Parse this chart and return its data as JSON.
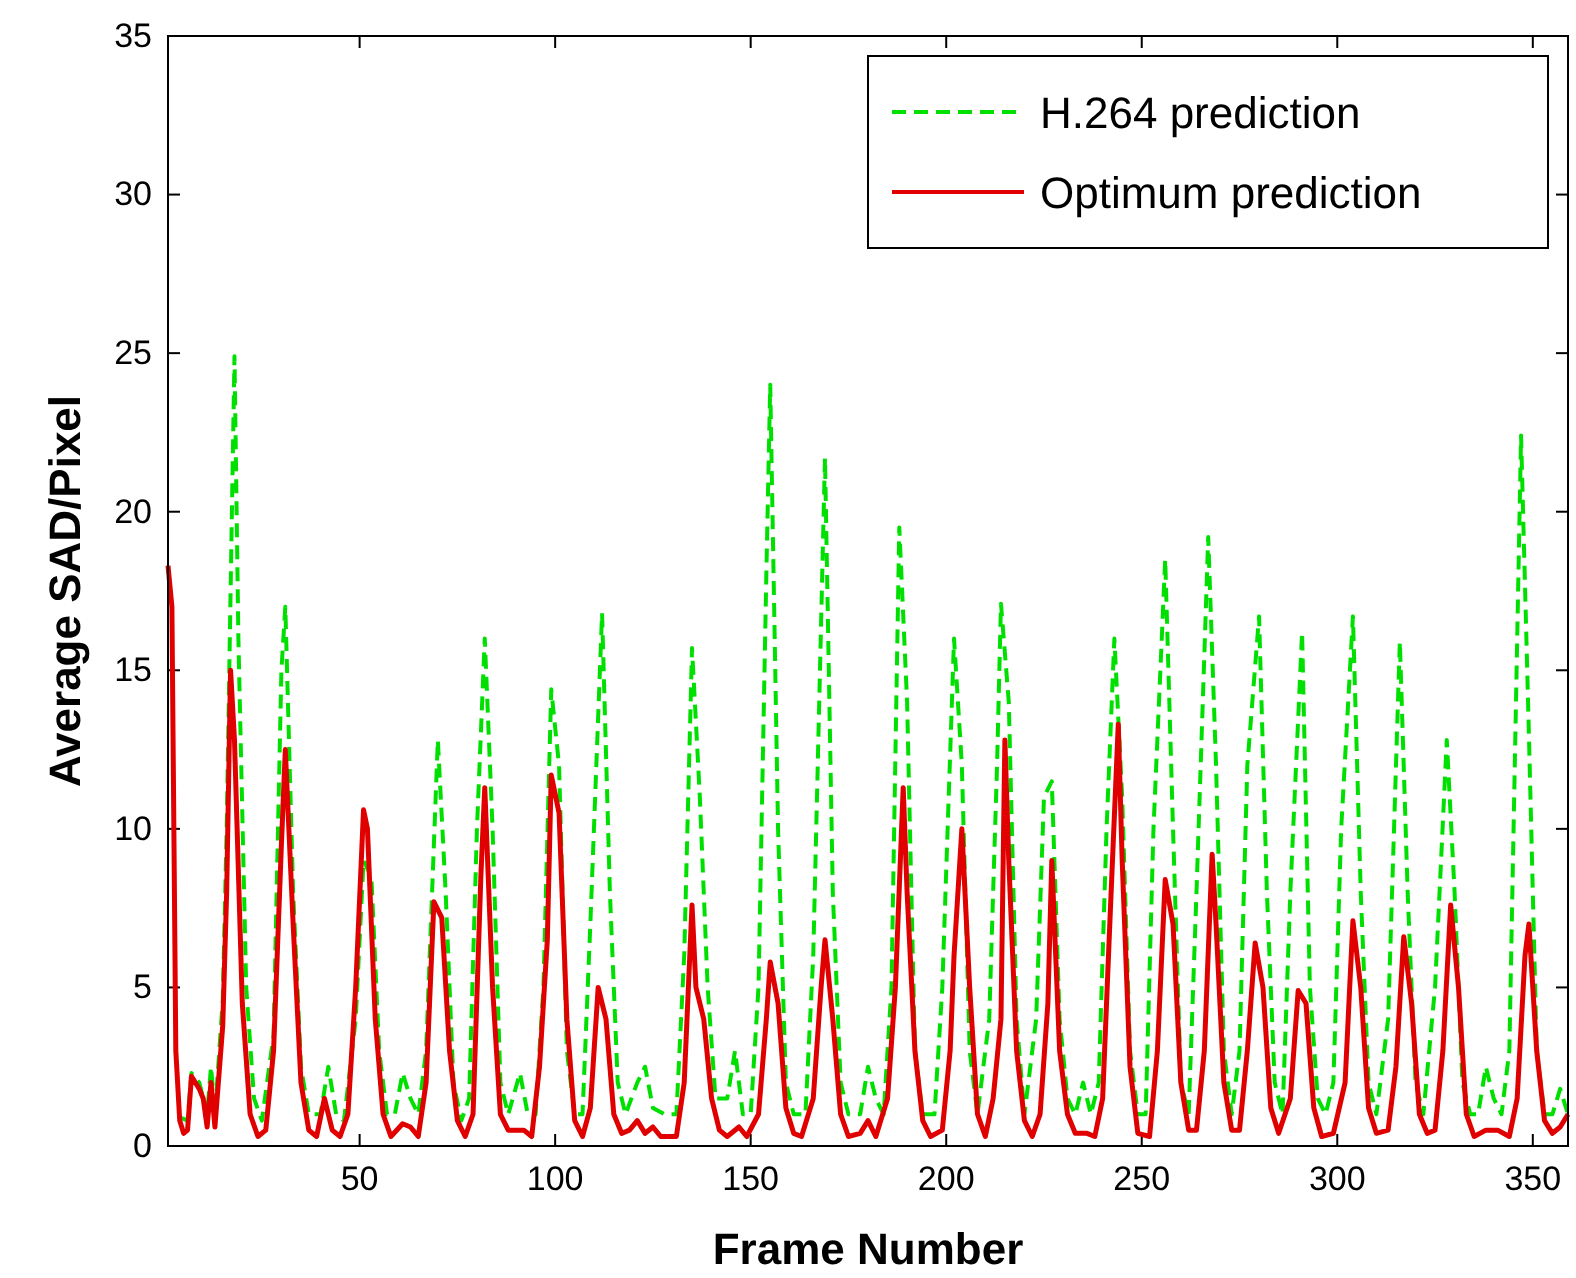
{
  "chart_data": {
    "type": "line",
    "xlabel": "Frame Number",
    "ylabel": "Average SAD/Pixel",
    "xlim": [
      1,
      359
    ],
    "ylim": [
      0,
      35
    ],
    "xticks": [
      50,
      100,
      150,
      200,
      250,
      300,
      350
    ],
    "yticks": [
      0,
      5,
      10,
      15,
      20,
      25,
      30,
      35
    ],
    "grid": false,
    "legend": "top right",
    "marker": "none",
    "series": [
      {
        "name": "H.264 prediction",
        "color": "#00e000",
        "line_style": "dashed",
        "x": [
          4,
          6,
          7,
          9,
          11,
          12,
          13,
          15,
          16,
          18,
          19,
          21,
          23,
          25,
          28,
          30,
          31,
          33,
          35,
          37,
          40,
          42,
          44,
          46,
          49,
          51,
          53,
          55,
          57,
          59,
          61,
          63,
          65,
          67,
          70,
          72,
          74,
          76,
          78,
          80,
          82,
          84,
          86,
          88,
          91,
          93,
          95,
          97,
          99,
          101,
          103,
          105,
          107,
          109,
          112,
          114,
          116,
          118,
          121,
          123,
          125,
          128,
          131,
          133,
          135,
          137,
          139,
          141,
          144,
          146,
          148,
          150,
          152,
          154,
          155,
          157,
          159,
          161,
          164,
          166,
          169,
          171,
          173,
          175,
          178,
          180,
          182,
          184,
          186,
          188,
          190,
          192,
          194,
          197,
          199,
          202,
          204,
          206,
          208,
          211,
          213,
          214,
          216,
          218,
          220,
          223,
          225,
          227,
          229,
          231,
          233,
          235,
          237,
          239,
          241,
          243,
          245,
          247,
          249,
          251,
          253,
          256,
          258,
          260,
          262,
          264,
          267,
          269,
          271,
          273,
          275,
          277,
          280,
          282,
          284,
          286,
          288,
          291,
          293,
          295,
          297,
          299,
          301,
          304,
          306,
          308,
          310,
          313,
          316,
          318,
          320,
          322,
          325,
          328,
          330,
          332,
          334,
          336,
          338,
          340,
          342,
          344,
          347,
          349,
          351,
          353,
          355,
          357,
          359
        ],
        "values": [
          0.9,
          0.8,
          2.3,
          2,
          1,
          2.5,
          1,
          4.6,
          10,
          24.9,
          16,
          5,
          1.5,
          0.8,
          3.5,
          15,
          17,
          8,
          2.5,
          1,
          1,
          2.5,
          1,
          0.8,
          4,
          9,
          8.5,
          3,
          1,
          1,
          2.3,
          1.5,
          1,
          3,
          12.8,
          8,
          2,
          0.8,
          1.5,
          10,
          16,
          10,
          2,
          1,
          2.3,
          1,
          1,
          5,
          14.4,
          12,
          3,
          1,
          1,
          7,
          16.8,
          8,
          2,
          1,
          2,
          2.5,
          1.2,
          1,
          1,
          6,
          15.7,
          11,
          5,
          1.5,
          1.5,
          3,
          1,
          1,
          5,
          18,
          24,
          10,
          2,
          1,
          1,
          6,
          21.7,
          8,
          2,
          1,
          1,
          2.5,
          1.5,
          1,
          5,
          19.5,
          14,
          3,
          1,
          1,
          5,
          16,
          12,
          3,
          1,
          4,
          12,
          17.1,
          14,
          4,
          1,
          4,
          11,
          11.5,
          4,
          1.5,
          1,
          2,
          1,
          2,
          10,
          16,
          11,
          3,
          1,
          1,
          10,
          18.5,
          10,
          2,
          1,
          8,
          19.2,
          12,
          3,
          1,
          3,
          12,
          16.7,
          8,
          2,
          1,
          8,
          16.2,
          5,
          1.5,
          1,
          2,
          10,
          16.7,
          8,
          2,
          1,
          4,
          15.9,
          8,
          2,
          1,
          5,
          12.8,
          8,
          2,
          1,
          1,
          2.5,
          1.5,
          1,
          3,
          22.4,
          13,
          3,
          1,
          1,
          1.8,
          1
        ]
      },
      {
        "name": "Optimum prediction",
        "color": "#e00000",
        "line_style": "solid",
        "x": [
          1,
          2,
          3,
          4,
          5,
          6,
          7,
          9,
          10,
          11,
          12,
          13,
          15,
          16,
          17,
          18,
          20,
          22,
          24,
          26,
          28,
          30,
          31,
          33,
          35,
          37,
          39,
          41,
          43,
          45,
          47,
          49,
          51,
          52,
          54,
          56,
          58,
          61,
          63,
          65,
          67,
          69,
          71,
          73,
          75,
          77,
          79,
          81,
          82,
          84,
          86,
          88,
          90,
          92,
          94,
          96,
          98,
          99,
          101,
          103,
          105,
          107,
          109,
          111,
          113,
          115,
          117,
          119,
          121,
          123,
          125,
          127,
          131,
          133,
          135,
          136,
          138,
          140,
          142,
          144,
          147,
          149,
          152,
          154,
          155,
          157,
          159,
          161,
          163,
          166,
          168,
          169,
          171,
          173,
          175,
          178,
          180,
          182,
          185,
          187,
          189,
          190,
          192,
          194,
          196,
          199,
          201,
          202,
          204,
          206,
          208,
          210,
          212,
          214,
          215,
          216,
          218,
          220,
          222,
          224,
          226,
          227,
          229,
          231,
          233,
          236,
          238,
          240,
          242,
          244,
          245,
          247,
          249,
          252,
          254,
          256,
          258,
          260,
          262,
          264,
          266,
          268,
          269,
          271,
          273,
          275,
          277,
          279,
          281,
          283,
          285,
          288,
          290,
          292,
          294,
          296,
          299,
          302,
          304,
          306,
          308,
          310,
          313,
          315,
          317,
          319,
          321,
          323,
          325,
          327,
          329,
          331,
          333,
          335,
          338,
          341,
          344,
          346,
          348,
          349,
          351,
          353,
          355,
          357,
          359
        ],
        "values": [
          18.3,
          17,
          3,
          0.8,
          0.4,
          0.5,
          2.2,
          1.8,
          1.5,
          0.6,
          2,
          0.6,
          3.8,
          8,
          15,
          12.8,
          4.5,
          1,
          0.3,
          0.5,
          3,
          9.5,
          12.5,
          7,
          2,
          0.5,
          0.3,
          1.5,
          0.5,
          0.3,
          1,
          5,
          10.6,
          10,
          4,
          1,
          0.3,
          0.7,
          0.6,
          0.3,
          2,
          7.7,
          7.2,
          3,
          0.8,
          0.3,
          1,
          8.5,
          11.3,
          5,
          1,
          0.5,
          0.5,
          0.5,
          0.3,
          2.5,
          6.5,
          11.7,
          10.5,
          4,
          0.8,
          0.3,
          1.2,
          5,
          4,
          1,
          0.4,
          0.5,
          0.8,
          0.4,
          0.6,
          0.3,
          0.3,
          2,
          7.6,
          5,
          4,
          1.5,
          0.5,
          0.3,
          0.6,
          0.3,
          1,
          4,
          5.8,
          4.5,
          1.2,
          0.4,
          0.3,
          1.5,
          5,
          6.5,
          4,
          1,
          0.3,
          0.4,
          0.8,
          0.3,
          1.5,
          5,
          11.3,
          8,
          3,
          0.8,
          0.3,
          0.5,
          3,
          6,
          10,
          5,
          1,
          0.3,
          1.5,
          4,
          12.8,
          9,
          3,
          0.8,
          0.3,
          1,
          4.5,
          9,
          3,
          1,
          0.4,
          0.4,
          0.3,
          1.5,
          7.5,
          13.3,
          9,
          2.5,
          0.4,
          0.3,
          3,
          8.4,
          7,
          2,
          0.5,
          0.5,
          3,
          9.2,
          7,
          2,
          0.5,
          0.5,
          3,
          6.4,
          5,
          1.2,
          0.4,
          1.5,
          4.9,
          4.5,
          1.2,
          0.3,
          0.4,
          2,
          7.1,
          5,
          1.2,
          0.4,
          0.5,
          2.5,
          6.6,
          4.5,
          1,
          0.4,
          0.5,
          3,
          7.6,
          5,
          1,
          0.3,
          0.5,
          0.5,
          0.3,
          1.5,
          6,
          7,
          3,
          0.8,
          0.4,
          0.6,
          1
        ]
      }
    ]
  }
}
